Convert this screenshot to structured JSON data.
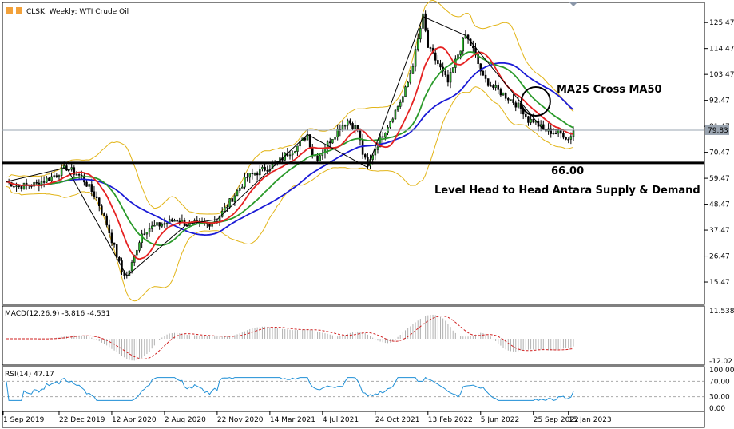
{
  "header": {
    "title": "CLSK, Weekly:  WTI Crude Oil"
  },
  "chart_data": [
    {
      "type": "candlestick",
      "title": "CLSK, Weekly:  WTI Crude Oil",
      "y_ticks": [
        "125.47",
        "114.47",
        "103.47",
        "92.47",
        "81.47",
        "70.47",
        "59.47",
        "48.47",
        "37.47",
        "26.47",
        "15.47"
      ],
      "ylim": [
        6,
        134
      ],
      "current_price_label": "79.83",
      "x_ticks": [
        "1 Sep 2019",
        "22 Dec 2019",
        "12 Apr 2020",
        "2 Aug 2020",
        "22 Nov 2020",
        "14 Mar 2021",
        "4 Jul 2021",
        "24 Oct 2021",
        "13 Feb 2022",
        "5 Jun 2022",
        "25 Sep 2022",
        "15 Jan 2023"
      ],
      "price_path": [
        [
          0,
          58
        ],
        [
          5,
          56
        ],
        [
          12,
          57
        ],
        [
          18,
          60
        ],
        [
          24,
          64
        ],
        [
          30,
          60
        ],
        [
          36,
          51
        ],
        [
          40,
          40
        ],
        [
          43,
          30
        ],
        [
          46,
          20
        ],
        [
          48,
          18
        ],
        [
          50,
          23
        ],
        [
          52,
          30
        ],
        [
          54,
          36
        ],
        [
          56,
          38
        ],
        [
          62,
          40
        ],
        [
          68,
          42
        ],
        [
          72,
          40
        ],
        [
          76,
          40
        ],
        [
          80,
          40
        ],
        [
          84,
          42
        ],
        [
          88,
          48
        ],
        [
          92,
          54
        ],
        [
          96,
          60
        ],
        [
          100,
          62
        ],
        [
          104,
          64
        ],
        [
          108,
          66
        ],
        [
          112,
          70
        ],
        [
          116,
          73
        ],
        [
          120,
          78
        ],
        [
          122,
          70
        ],
        [
          124,
          68
        ],
        [
          128,
          74
        ],
        [
          132,
          80
        ],
        [
          136,
          84
        ],
        [
          140,
          80
        ],
        [
          142,
          70
        ],
        [
          144,
          64
        ],
        [
          146,
          70
        ],
        [
          150,
          78
        ],
        [
          154,
          86
        ],
        [
          158,
          94
        ],
        [
          160,
          100
        ],
        [
          162,
          108
        ],
        [
          164,
          118
        ],
        [
          166,
          128
        ],
        [
          168,
          115
        ],
        [
          172,
          108
        ],
        [
          176,
          100
        ],
        [
          178,
          106
        ],
        [
          180,
          112
        ],
        [
          183,
          120
        ],
        [
          186,
          114
        ],
        [
          190,
          102
        ],
        [
          194,
          98
        ],
        [
          198,
          95
        ],
        [
          202,
          92
        ],
        [
          206,
          88
        ],
        [
          208,
          84
        ],
        [
          210,
          84
        ],
        [
          214,
          80
        ],
        [
          218,
          79
        ],
        [
          222,
          78
        ],
        [
          224,
          76
        ],
        [
          226,
          79.83
        ]
      ],
      "level_line": {
        "value": 66,
        "label": "66.00"
      },
      "annotations": [
        "MA25 Cross MA50",
        "Level Head to Head Antara Supply & Demand"
      ],
      "series": [
        {
          "name": "MA25",
          "color": "#e52121"
        },
        {
          "name": "MA50",
          "color": "#2a9a2a"
        },
        {
          "name": "MA100",
          "color": "#1a1ad6"
        },
        {
          "name": "Bollinger Bands",
          "color": "#e2b417"
        }
      ]
    },
    {
      "type": "histogram",
      "title": "MACD(12,26,9) -3.816 -4.531",
      "y_ticks": [
        "11.538",
        "-12.02"
      ],
      "color": "#b0b0b0",
      "signal_color": "#d02020"
    },
    {
      "type": "line",
      "title": "RSI(14) 47.17",
      "y_ticks": [
        "100.00",
        "70.00",
        "30.00",
        "0.00"
      ],
      "ylim": [
        0,
        100
      ],
      "levels": [
        70,
        30
      ],
      "color": "#1e8fd6"
    }
  ]
}
